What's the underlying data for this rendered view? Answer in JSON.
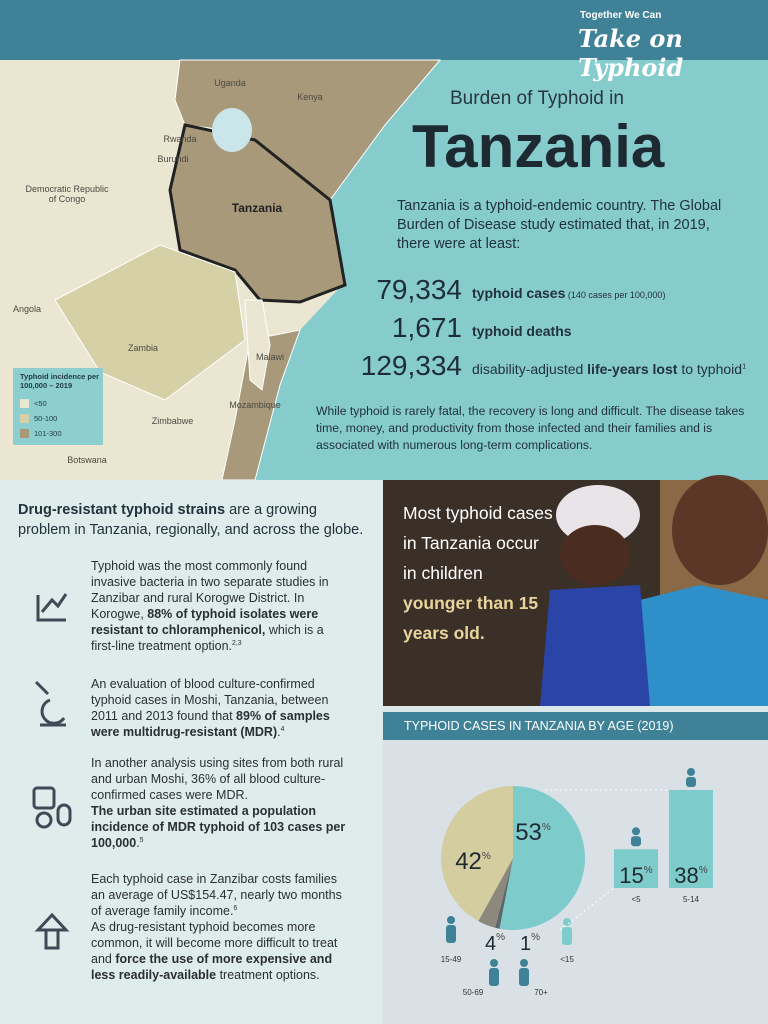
{
  "header": {
    "tagline": "Together We Can",
    "logo": "Take on Typhoid"
  },
  "map": {
    "labels": [
      "Uganda",
      "Kenya",
      "Rwanda",
      "Burundi",
      "Democratic Republic of Congo",
      "Tanzania",
      "Angola",
      "Zambia",
      "Malawi",
      "Mozambique",
      "Zimbabwe",
      "Botswana"
    ],
    "legend": {
      "title": "Typhoid incidence per 100,000 – 2019",
      "items": [
        {
          "label": "<50",
          "color": "#ebe6d2"
        },
        {
          "label": "50-100",
          "color": "#d6d0a6"
        },
        {
          "label": "101-300",
          "color": "#a8997a"
        }
      ]
    }
  },
  "title": {
    "pre": "Burden of Typhoid in",
    "main": "Tanzania"
  },
  "intro": "Tanzania is a typhoid-endemic country. The Global Burden of Disease study estimated that, in 2019, there were at least:",
  "stats": [
    {
      "number": "79,334",
      "parts": [
        {
          "text": "typhoid cases",
          "bold": true
        },
        {
          "text": " (140 cases per 100,000)",
          "small": true
        }
      ]
    },
    {
      "number": "1,671",
      "parts": [
        {
          "text": "typhoid deaths",
          "bold": true
        }
      ]
    },
    {
      "number": "129,334",
      "parts": [
        {
          "text": "disability-adjusted "
        },
        {
          "text": "life-years lost",
          "bold": true
        },
        {
          "text": " to typhoid"
        },
        {
          "text": "1",
          "sup": true
        }
      ]
    }
  ],
  "recovery": "While typhoid is rarely fatal, the recovery is long and difficult. The disease takes time, money, and productivity from those infected and their families and is associated with numerous long-term complications.",
  "resistance": {
    "heading": [
      {
        "text": "Drug-resistant typhoid strains",
        "bold": true
      },
      {
        "text": " are a growing problem in Tanzania, regionally, and across the globe."
      }
    ],
    "items": [
      {
        "parts": [
          {
            "text": "Typhoid was the most commonly found invasive bacteria in two separate studies in Zanzibar and rural Korogwe District. In Korogwe, "
          },
          {
            "text": "88% of typhoid isolates were resistant to chloramphenicol,",
            "bold": true
          },
          {
            "text": " which is a first-line treatment option."
          },
          {
            "text": "2,3",
            "sup": true
          }
        ]
      },
      {
        "parts": [
          {
            "text": "An evaluation of blood culture-confirmed typhoid cases in Moshi, Tanzania, between 2011 and 2013 found that "
          },
          {
            "text": "89% of samples were multidrug-resistant (MDR)",
            "bold": true
          },
          {
            "text": "."
          },
          {
            "text": "4",
            "sup": true
          }
        ]
      },
      {
        "parts": [
          {
            "text": "In another analysis using sites from both rural and urban Moshi, 36% of all blood culture-confirmed cases were MDR."
          },
          {
            "text": "The urban site estimated a population incidence of MDR typhoid of 103 cases per 100,000",
            "bold": true,
            "newline": true
          },
          {
            "text": "."
          },
          {
            "text": "5",
            "sup": true
          }
        ]
      },
      {
        "parts": [
          {
            "text": "Each typhoid case in Zanzibar costs families an average of US$154.47, nearly two months of average family income."
          },
          {
            "text": "6",
            "sup": true
          },
          {
            "text": "As drug-resistant typhoid becomes more common, it will become more difficult to treat and ",
            "newline": true
          },
          {
            "text": "force the use of more expensive and less readily-available",
            "bold": true
          },
          {
            "text": " treatment options."
          }
        ]
      }
    ]
  },
  "photo_caption": [
    {
      "text": "Most typhoid cases in Tanzania occur in children "
    },
    {
      "text": "younger than 15 years old.",
      "bold": true
    }
  ],
  "age_chart": {
    "type": "pie",
    "title": "TYPHOID CASES IN TANZANIA BY AGE (2019)",
    "categories": [
      "<15",
      "70+",
      "50-69",
      "15-49"
    ],
    "values": [
      53,
      1,
      4,
      42
    ],
    "colors": [
      "#7ecbcc",
      "#5c676b",
      "#8d887c",
      "#d4cda0"
    ],
    "unit": "%",
    "breakdown": {
      "type": "bar",
      "categories": [
        "<5",
        "5-14"
      ],
      "values": [
        15,
        38
      ],
      "color": "#7ecbcc"
    }
  }
}
